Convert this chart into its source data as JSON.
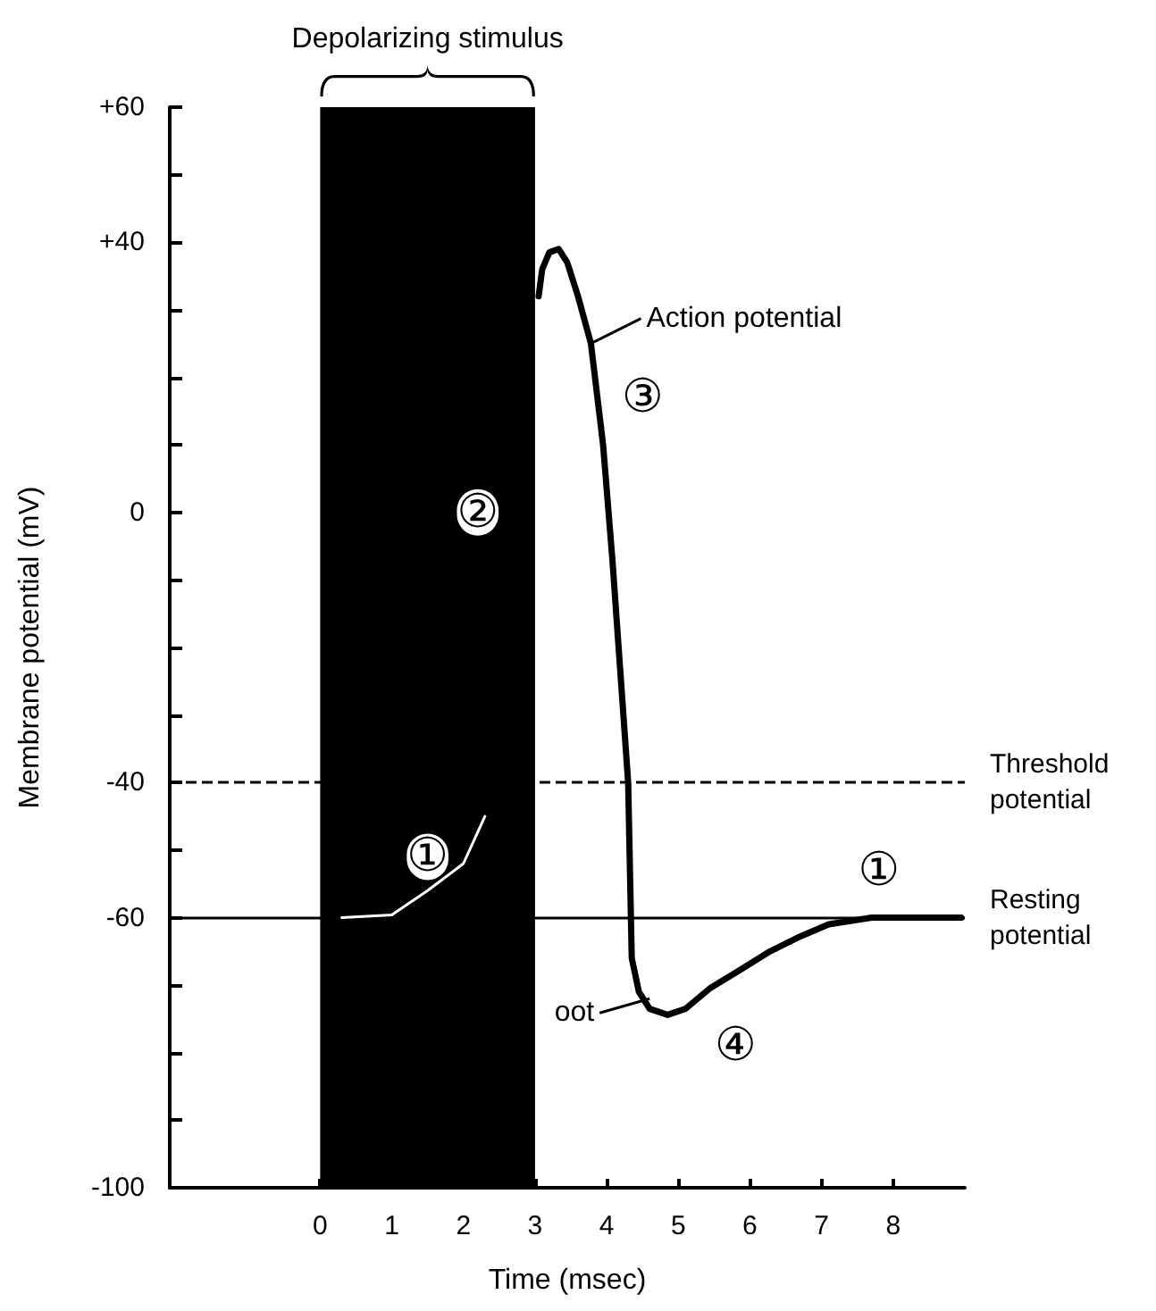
{
  "chart_data": {
    "type": "line",
    "xlabel": "Time (msec)",
    "ylabel": "Membrane potential (mV)",
    "xlim": [
      -2.1,
      9
    ],
    "xticks": [
      0,
      1,
      2,
      3,
      4,
      5,
      6,
      7,
      8
    ],
    "ylim": [
      -100,
      60
    ],
    "yticks": [
      {
        "value": 60,
        "label": "+60"
      },
      {
        "value": 50,
        "label": null
      },
      {
        "value": 40,
        "label": "+40"
      },
      {
        "value": 30,
        "label": null
      },
      {
        "value": 20,
        "label": null
      },
      {
        "value": 10,
        "label": null
      },
      0,
      {
        "value": -10,
        "label": null
      },
      {
        "value": -20,
        "label": null
      },
      {
        "value": -30,
        "label": null
      },
      -40,
      {
        "value": -50,
        "label": null
      },
      -60,
      {
        "value": -70,
        "label": null
      },
      {
        "value": -80,
        "label": null
      },
      {
        "value": -90,
        "label": null
      },
      -100
    ],
    "series": [
      {
        "color": "#ffffff",
        "x": [
          0.3,
          1,
          1.5,
          2,
          2.3
        ],
        "values": [
          -60,
          -59.6,
          -56,
          -52,
          -45
        ]
      },
      {
        "color": "#000000",
        "x": [
          3.05,
          3.1,
          3.2,
          3.33,
          3.45,
          3.6,
          3.78,
          3.95,
          4.08,
          4.2,
          4.3,
          4.35,
          4.45,
          4.6,
          4.85,
          5.1,
          5.45,
          5.9,
          6.28,
          6.7,
          7.1,
          7.7,
          8.95
        ],
        "values": [
          32,
          36,
          38.5,
          39,
          37,
          32,
          25,
          10,
          -7,
          -25,
          -40,
          -66,
          -71,
          -73.5,
          -74.4,
          -73.5,
          -70.4,
          -67.5,
          -65,
          -62.8,
          -61,
          -60,
          -60
        ]
      }
    ],
    "ref_lines": [
      {
        "axis": "y",
        "value": -40,
        "label": "Threshold potential",
        "line_style": "dashed",
        "color": "#000000"
      },
      {
        "axis": "y",
        "value": -60,
        "label": "Resting potential",
        "line_style": "solid",
        "color": "#000000"
      }
    ],
    "bands": [
      {
        "axis": "x",
        "from": 0,
        "to": 3,
        "label": "Depolarizing stimulus",
        "color": "#000000"
      }
    ],
    "annotations": [
      {
        "text": "Action potential",
        "x": 3.78,
        "y": 25
      },
      {
        "text": "oot",
        "x": 4.6,
        "y": -72
      },
      {
        "text": "①",
        "x": 1.5,
        "y": -51
      },
      {
        "text": "②",
        "x": 2.2,
        "y": 0
      },
      {
        "text": "③",
        "x": 4.5,
        "y": 17
      },
      {
        "text": "④",
        "x": 5.8,
        "y": -79
      },
      {
        "text": "①",
        "x": 7.8,
        "y": -53
      }
    ],
    "grid": false,
    "marker": "none",
    "line_style": "solid"
  }
}
